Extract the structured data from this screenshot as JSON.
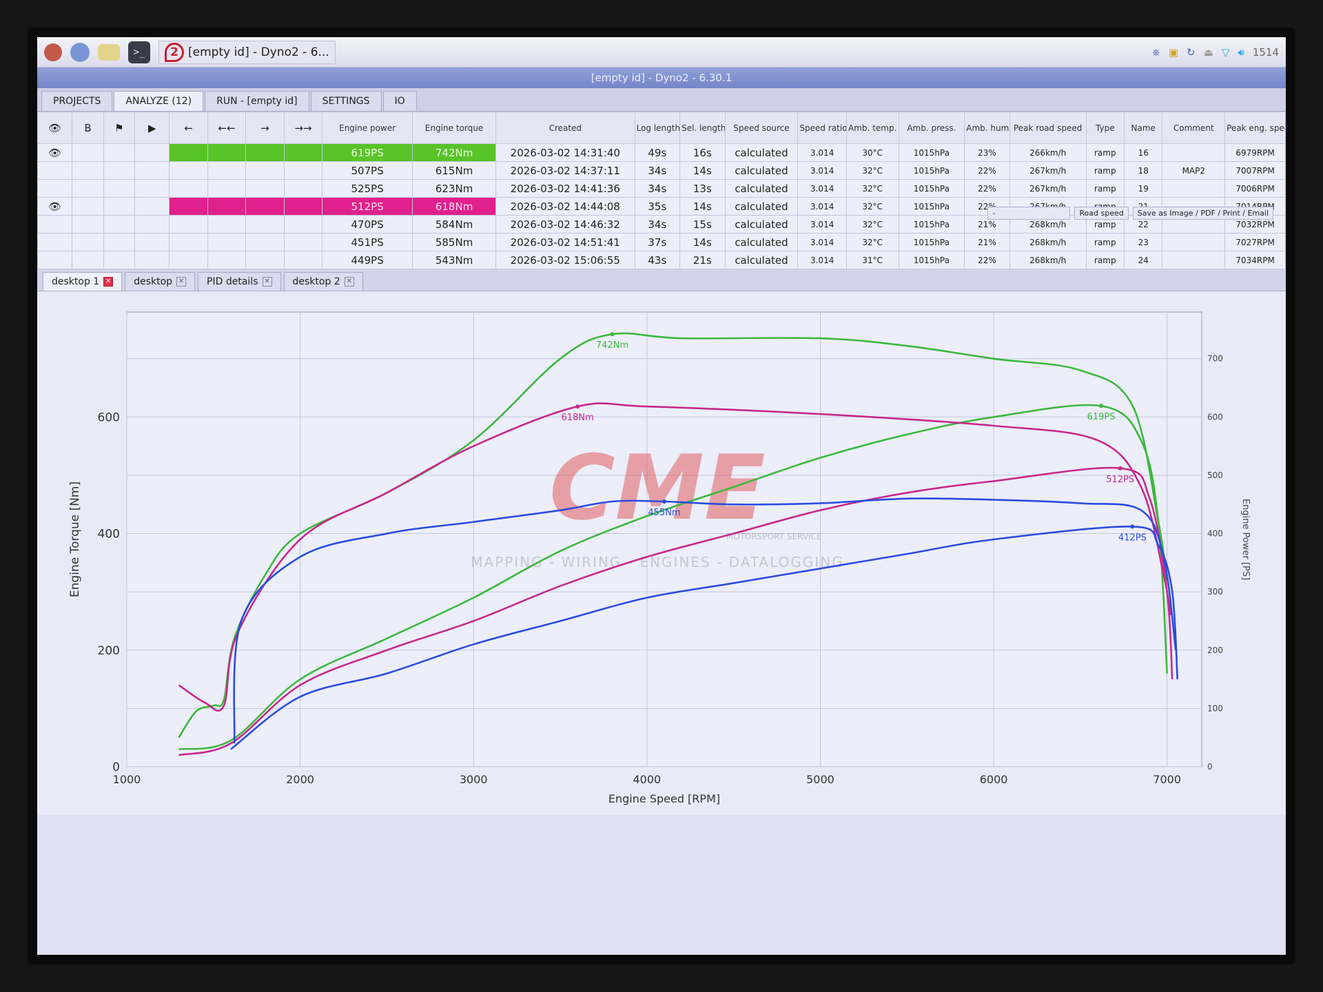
{
  "taskbar": {
    "icons": [
      "raspberry-menu-icon",
      "globe-browser-icon",
      "folder-icon",
      "terminal-icon",
      "trash-icon"
    ],
    "terminal_glyph": ">_",
    "app_badge": "2",
    "app_title": "[empty id] - Dyno2 - 6...",
    "tray": {
      "clock": "1514",
      "icons": [
        "bluetooth-icon",
        "network-icon",
        "sync-icon",
        "eject-icon",
        "wifi-icon",
        "volume-icon"
      ]
    }
  },
  "window": {
    "title": "[empty id] - Dyno2 - 6.30.1"
  },
  "main_tabs": [
    {
      "label": "PROJECTS"
    },
    {
      "label": "ANALYZE (12)",
      "active": true
    },
    {
      "label": "RUN - [empty id]"
    },
    {
      "label": "SETTINGS"
    },
    {
      "label": "IO"
    }
  ],
  "toolbar": {
    "b_label": "B",
    "arrows": [
      "←",
      "←←",
      "→",
      "→→"
    ]
  },
  "table": {
    "columns": [
      "Engine power",
      "Engine torque",
      "Created",
      "Log length",
      "Sel. length",
      "Speed source",
      "Speed ratio",
      "Amb. temp.",
      "Amb. press.",
      "Amb. hum.",
      "Peak road speed",
      "Type",
      "Name",
      "Comment",
      "Peak eng. speed"
    ],
    "extra_controls": {
      "dropdown1": "-",
      "dropdown2": "Road speed",
      "save": "Save as Image / PDF / Print / Email"
    },
    "rows": [
      {
        "highlight": "#58c428",
        "visible": true,
        "power": "619PS",
        "torque": "742Nm",
        "created": "2026-03-02 14:31:40",
        "log": "49s",
        "sel": "16s",
        "source": "calculated",
        "ratio": "3.014",
        "temp": "30°C",
        "press": "1015hPa",
        "hum": "23%",
        "road": "266km/h",
        "type": "ramp",
        "name": "16",
        "comment": "",
        "eng": "6979RPM"
      },
      {
        "highlight": "",
        "visible": false,
        "power": "507PS",
        "torque": "615Nm",
        "created": "2026-03-02 14:37:11",
        "log": "34s",
        "sel": "14s",
        "source": "calculated",
        "ratio": "3.014",
        "temp": "32°C",
        "press": "1015hPa",
        "hum": "22%",
        "road": "267km/h",
        "type": "ramp",
        "name": "18",
        "comment": "MAP2",
        "eng": "7007RPM"
      },
      {
        "highlight": "",
        "visible": false,
        "power": "525PS",
        "torque": "623Nm",
        "created": "2026-03-02 14:41:36",
        "log": "34s",
        "sel": "13s",
        "source": "calculated",
        "ratio": "3.014",
        "temp": "32°C",
        "press": "1015hPa",
        "hum": "22%",
        "road": "267km/h",
        "type": "ramp",
        "name": "19",
        "comment": "",
        "eng": "7006RPM"
      },
      {
        "highlight": "#e0208c",
        "visible": true,
        "power": "512PS",
        "torque": "618Nm",
        "created": "2026-03-02 14:44:08",
        "log": "35s",
        "sel": "14s",
        "source": "calculated",
        "ratio": "3.014",
        "temp": "32°C",
        "press": "1015hPa",
        "hum": "22%",
        "road": "267km/h",
        "type": "ramp",
        "name": "21",
        "comment": "",
        "eng": "7014RPM"
      },
      {
        "highlight": "",
        "visible": false,
        "power": "470PS",
        "torque": "584Nm",
        "created": "2026-03-02 14:46:32",
        "log": "34s",
        "sel": "15s",
        "source": "calculated",
        "ratio": "3.014",
        "temp": "32°C",
        "press": "1015hPa",
        "hum": "21%",
        "road": "268km/h",
        "type": "ramp",
        "name": "22",
        "comment": "",
        "eng": "7032RPM"
      },
      {
        "highlight": "",
        "visible": false,
        "power": "451PS",
        "torque": "585Nm",
        "created": "2026-03-02 14:51:41",
        "log": "37s",
        "sel": "14s",
        "source": "calculated",
        "ratio": "3.014",
        "temp": "32°C",
        "press": "1015hPa",
        "hum": "21%",
        "road": "268km/h",
        "type": "ramp",
        "name": "23",
        "comment": "",
        "eng": "7027RPM"
      },
      {
        "highlight": "",
        "visible": false,
        "power": "449PS",
        "torque": "543Nm",
        "created": "2026-03-02 15:06:55",
        "log": "43s",
        "sel": "21s",
        "source": "calculated",
        "ratio": "3.014",
        "temp": "31°C",
        "press": "1015hPa",
        "hum": "22%",
        "road": "268km/h",
        "type": "ramp",
        "name": "24",
        "comment": "",
        "eng": "7034RPM"
      }
    ]
  },
  "desktop_tabs": [
    {
      "label": "desktop 1",
      "active": true
    },
    {
      "label": "desktop"
    },
    {
      "label": "PID details"
    },
    {
      "label": "desktop 2"
    }
  ],
  "logo": {
    "mark": "CME",
    "sub": "MOTORSPORT SERVICE",
    "tagline": "MAPPING - WIRING - ENGINES - DATALOGGING"
  },
  "chart_data": {
    "type": "line",
    "xlabel": "Engine Speed [RPM]",
    "ylabel": "Engine Torque [Nm]",
    "y2label": "Engine Power [PS]",
    "xlim": [
      1000,
      7200
    ],
    "ylim": [
      0,
      780
    ],
    "y2lim": [
      0,
      780
    ],
    "xticks": [
      1000,
      2000,
      3000,
      4000,
      5000,
      6000,
      7000
    ],
    "yticks": [
      0,
      200,
      400,
      600
    ],
    "y2ticks": [
      0,
      100,
      200,
      300,
      400,
      500,
      600,
      700
    ],
    "grid": true,
    "series": [
      {
        "color": "#3cb83c",
        "axis": "left",
        "peak_label": "742Nm",
        "peak": [
          3800,
          742
        ],
        "points": [
          [
            1300,
            50
          ],
          [
            1400,
            95
          ],
          [
            1500,
            105
          ],
          [
            1560,
            115
          ],
          [
            1620,
            220
          ],
          [
            1800,
            330
          ],
          [
            2000,
            400
          ],
          [
            2500,
            470
          ],
          [
            3000,
            560
          ],
          [
            3500,
            700
          ],
          [
            3800,
            742
          ],
          [
            4200,
            735
          ],
          [
            5000,
            735
          ],
          [
            5500,
            722
          ],
          [
            6000,
            700
          ],
          [
            6500,
            680
          ],
          [
            6800,
            620
          ],
          [
            6950,
            420
          ],
          [
            7000,
            320
          ]
        ]
      },
      {
        "color": "#3cb83c",
        "axis": "right",
        "peak_label": "619PS",
        "peak": [
          6620,
          619
        ],
        "points": [
          [
            1300,
            30
          ],
          [
            1600,
            45
          ],
          [
            2000,
            150
          ],
          [
            2500,
            220
          ],
          [
            3000,
            290
          ],
          [
            3500,
            370
          ],
          [
            4000,
            430
          ],
          [
            4500,
            480
          ],
          [
            5000,
            530
          ],
          [
            5500,
            570
          ],
          [
            6000,
            600
          ],
          [
            6620,
            619
          ],
          [
            6850,
            560
          ],
          [
            6950,
            420
          ],
          [
            7000,
            160
          ]
        ]
      },
      {
        "color": "#c8288c",
        "axis": "left",
        "peak_label": "618Nm",
        "peak": [
          3600,
          618
        ],
        "points": [
          [
            1300,
            140
          ],
          [
            1450,
            110
          ],
          [
            1560,
            105
          ],
          [
            1640,
            230
          ],
          [
            2000,
            390
          ],
          [
            2500,
            470
          ],
          [
            3000,
            550
          ],
          [
            3600,
            618
          ],
          [
            4000,
            618
          ],
          [
            5000,
            605
          ],
          [
            6000,
            585
          ],
          [
            6600,
            560
          ],
          [
            6850,
            480
          ],
          [
            6980,
            330
          ],
          [
            7020,
            260
          ]
        ]
      },
      {
        "color": "#c8288c",
        "axis": "right",
        "peak_label": "512PS",
        "peak": [
          6730,
          512
        ],
        "points": [
          [
            1300,
            20
          ],
          [
            1600,
            40
          ],
          [
            2000,
            140
          ],
          [
            2500,
            200
          ],
          [
            3000,
            250
          ],
          [
            3500,
            310
          ],
          [
            4000,
            360
          ],
          [
            4500,
            400
          ],
          [
            5000,
            440
          ],
          [
            5500,
            470
          ],
          [
            6000,
            490
          ],
          [
            6730,
            512
          ],
          [
            6900,
            460
          ],
          [
            7000,
            300
          ],
          [
            7030,
            150
          ]
        ]
      },
      {
        "color": "#2a4ce0",
        "axis": "left",
        "peak_label": "455Nm",
        "peak": [
          4100,
          455
        ],
        "points": [
          [
            1620,
            40
          ],
          [
            1660,
            250
          ],
          [
            2000,
            360
          ],
          [
            2500,
            400
          ],
          [
            3000,
            420
          ],
          [
            3500,
            440
          ],
          [
            3800,
            455
          ],
          [
            4100,
            455
          ],
          [
            4500,
            450
          ],
          [
            5000,
            452
          ],
          [
            5500,
            460
          ],
          [
            6000,
            458
          ],
          [
            6500,
            452
          ],
          [
            6850,
            440
          ],
          [
            6980,
            360
          ],
          [
            7050,
            200
          ]
        ]
      },
      {
        "color": "#2a4ce0",
        "axis": "right",
        "peak_label": "412PS",
        "peak": [
          6800,
          412
        ],
        "points": [
          [
            1600,
            30
          ],
          [
            2000,
            120
          ],
          [
            2500,
            160
          ],
          [
            3000,
            210
          ],
          [
            3500,
            250
          ],
          [
            4000,
            290
          ],
          [
            4500,
            315
          ],
          [
            5000,
            340
          ],
          [
            5500,
            365
          ],
          [
            6000,
            390
          ],
          [
            6800,
            412
          ],
          [
            6950,
            380
          ],
          [
            7030,
            300
          ],
          [
            7060,
            150
          ]
        ]
      }
    ]
  }
}
